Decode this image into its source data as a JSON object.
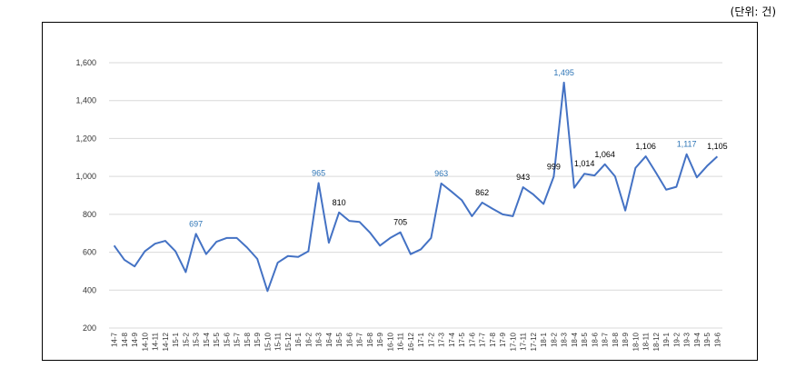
{
  "unit_label": "(단위: 건)",
  "colors": {
    "line": "#4472C4",
    "highlight_label": "#2E75B6",
    "label": "#000000",
    "grid": "#D9D9D9"
  },
  "chart_data": {
    "type": "line",
    "title": "",
    "xlabel": "",
    "ylabel": "",
    "ylim": [
      200,
      1600
    ],
    "yticks": [
      200,
      400,
      600,
      800,
      1000,
      1200,
      1400,
      1600
    ],
    "ytick_labels": [
      "200",
      "400",
      "600",
      "800",
      "1,000",
      "1,200",
      "1,400",
      "1,600"
    ],
    "grid": true,
    "legend": "none",
    "categories": [
      "14-7",
      "14-8",
      "14-9",
      "14-10",
      "14-11",
      "14-12",
      "15-1",
      "15-2",
      "15-3",
      "15-4",
      "15-5",
      "15-6",
      "15-7",
      "15-8",
      "15-9",
      "15-10",
      "15-11",
      "15-12",
      "16-1",
      "16-2",
      "16-3",
      "16-4",
      "16-5",
      "16-6",
      "16-7",
      "16-8",
      "16-9",
      "16-10",
      "16-11",
      "16-12",
      "17-1",
      "17-2",
      "17-3",
      "17-4",
      "17-5",
      "17-6",
      "17-7",
      "17-8",
      "17-9",
      "17-10",
      "17-11",
      "17-12",
      "18-1",
      "18-2",
      "18-3",
      "18-4",
      "18-5",
      "18-6",
      "18-7",
      "18-8",
      "18-9",
      "18-10",
      "18-11",
      "18-12",
      "19-1",
      "19-2",
      "19-3",
      "19-4",
      "19-5",
      "19-6"
    ],
    "series": [
      {
        "values": [
          635,
          560,
          525,
          605,
          645,
          660,
          605,
          495,
          697,
          590,
          655,
          675,
          675,
          625,
          565,
          395,
          545,
          580,
          575,
          605,
          965,
          650,
          810,
          765,
          760,
          705,
          635,
          675,
          705,
          590,
          615,
          675,
          963,
          920,
          875,
          790,
          862,
          830,
          800,
          790,
          943,
          905,
          855,
          999,
          1495,
          940,
          1014,
          1005,
          1064,
          1000,
          820,
          1045,
          1106,
          1020,
          930,
          945,
          1117,
          995,
          1055,
          1105
        ]
      }
    ],
    "data_labels": [
      {
        "index": 8,
        "text": "697",
        "highlight": true
      },
      {
        "index": 20,
        "text": "965",
        "highlight": true
      },
      {
        "index": 22,
        "text": "810",
        "highlight": false
      },
      {
        "index": 28,
        "text": "705",
        "highlight": false
      },
      {
        "index": 32,
        "text": "963",
        "highlight": true
      },
      {
        "index": 36,
        "text": "862",
        "highlight": false
      },
      {
        "index": 40,
        "text": "943",
        "highlight": false
      },
      {
        "index": 43,
        "text": "999",
        "highlight": false
      },
      {
        "index": 44,
        "text": "1,495",
        "highlight": true
      },
      {
        "index": 46,
        "text": "1,014",
        "highlight": false
      },
      {
        "index": 48,
        "text": "1,064",
        "highlight": false
      },
      {
        "index": 52,
        "text": "1,106",
        "highlight": false
      },
      {
        "index": 56,
        "text": "1,117",
        "highlight": true
      },
      {
        "index": 59,
        "text": "1,105",
        "highlight": false
      }
    ]
  }
}
